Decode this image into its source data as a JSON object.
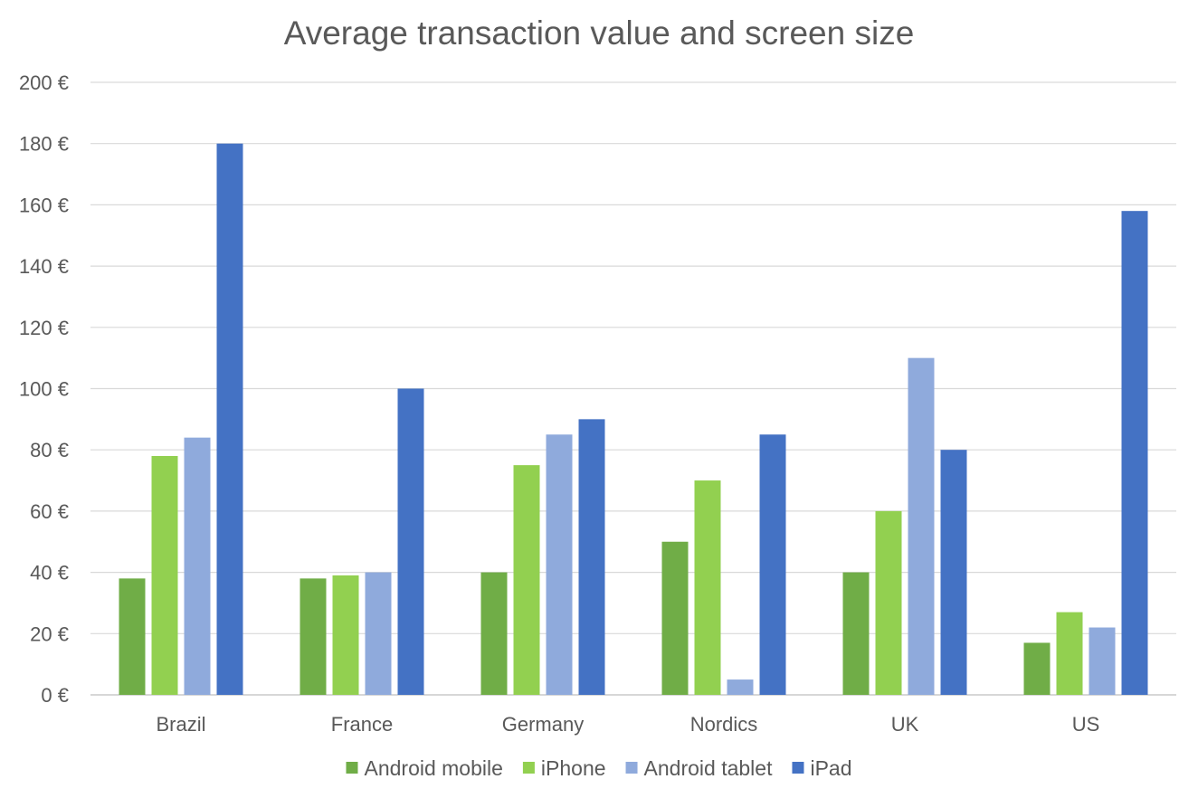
{
  "chart_data": {
    "type": "bar",
    "title": "Average transaction value and screen size",
    "xlabel": "",
    "ylabel": "",
    "categories": [
      "Brazil",
      "France",
      "Germany",
      "Nordics",
      "UK",
      "US"
    ],
    "series": [
      {
        "name": "Android mobile",
        "color": "#70ad47",
        "values": [
          38,
          38,
          40,
          50,
          40,
          17
        ]
      },
      {
        "name": "iPhone",
        "color": "#92d050",
        "values": [
          78,
          39,
          75,
          70,
          60,
          27
        ]
      },
      {
        "name": "Android tablet",
        "color": "#8faadc",
        "values": [
          84,
          40,
          85,
          5,
          110,
          22
        ]
      },
      {
        "name": "iPad",
        "color": "#4472c4",
        "values": [
          180,
          100,
          90,
          85,
          80,
          158
        ]
      }
    ],
    "ylim": [
      0,
      200
    ],
    "yticks": [
      0,
      20,
      40,
      60,
      80,
      100,
      120,
      140,
      160,
      180,
      200
    ],
    "ytick_labels": [
      "0 €",
      "20 €",
      "40 €",
      "60 €",
      "80 €",
      "100 €",
      "120 €",
      "140 €",
      "160 €",
      "180 €",
      "200 €"
    ],
    "grid": true,
    "legend_position": "bottom"
  }
}
